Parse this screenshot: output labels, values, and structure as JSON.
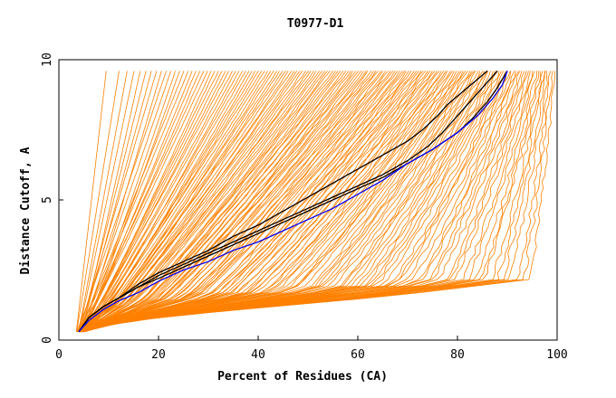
{
  "chart_data": {
    "type": "line",
    "title": "T0977-D1",
    "xlabel": "Percent of Residues (CA)",
    "ylabel": "Distance Cutoff, A",
    "xlim": [
      0,
      100
    ],
    "ylim": [
      0,
      10
    ],
    "x_ticks": [
      "0",
      "20",
      "40",
      "60",
      "80",
      "100"
    ],
    "y_ticks": [
      "0",
      "5",
      "10"
    ],
    "grid": false,
    "legend": "none",
    "colors": {
      "background_curves": "#ff8000",
      "highlight_curves": "#000000",
      "best_curve": "#0000ff",
      "frame": "#000000"
    },
    "background_curves": {
      "count": 160,
      "y_start": 0.3,
      "y_end": 9.6,
      "x_start_range": [
        3.5,
        5
      ],
      "x_end_range": [
        9.5,
        99.5
      ]
    },
    "series": [
      {
        "color": "#000000",
        "x": [
          4,
          6,
          9,
          12,
          16,
          20,
          25,
          30,
          35,
          40,
          45,
          50,
          55,
          60,
          65,
          70,
          74,
          77,
          80,
          83,
          86,
          88
        ],
        "y": [
          0.3,
          0.8,
          1.2,
          1.5,
          1.9,
          2.3,
          2.7,
          3.1,
          3.5,
          3.9,
          4.3,
          4.7,
          5.1,
          5.5,
          5.9,
          6.4,
          6.9,
          7.4,
          8.0,
          8.6,
          9.2,
          9.6
        ]
      },
      {
        "color": "#000000",
        "x": [
          4,
          6,
          9,
          12,
          16,
          20,
          25,
          30,
          35,
          40,
          45,
          50,
          55,
          60,
          65,
          70,
          73,
          76,
          78,
          80,
          82,
          84,
          86
        ],
        "y": [
          0.3,
          0.8,
          1.2,
          1.5,
          2.0,
          2.4,
          2.8,
          3.2,
          3.7,
          4.1,
          4.6,
          5.1,
          5.6,
          6.1,
          6.6,
          7.1,
          7.5,
          8.0,
          8.4,
          8.7,
          9.0,
          9.3,
          9.6
        ]
      },
      {
        "color": "#000000",
        "x": [
          4,
          6,
          9,
          12,
          16,
          20,
          25,
          30,
          35,
          40,
          45,
          50,
          55,
          60,
          65,
          70,
          75,
          80,
          83,
          86,
          88,
          90
        ],
        "y": [
          0.3,
          0.8,
          1.2,
          1.5,
          1.9,
          2.2,
          2.6,
          3.0,
          3.4,
          3.8,
          4.2,
          4.6,
          5.0,
          5.4,
          5.8,
          6.3,
          6.8,
          7.4,
          7.9,
          8.5,
          9.0,
          9.6
        ]
      },
      {
        "color": "#0000ff",
        "x": [
          4,
          6,
          9,
          12,
          16,
          20,
          25,
          30,
          35,
          40,
          45,
          50,
          55,
          60,
          65,
          70,
          75,
          80,
          84,
          87,
          89,
          90
        ],
        "y": [
          0.3,
          0.7,
          1.1,
          1.4,
          1.7,
          2.1,
          2.5,
          2.8,
          3.2,
          3.5,
          3.9,
          4.3,
          4.7,
          5.2,
          5.7,
          6.3,
          6.8,
          7.4,
          8.0,
          8.6,
          9.1,
          9.6
        ]
      }
    ]
  }
}
